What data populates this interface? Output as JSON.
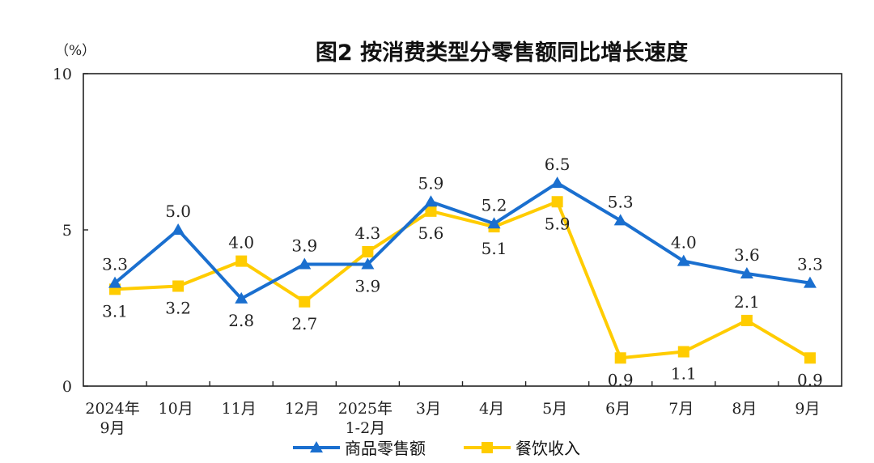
{
  "chart_data": {
    "type": "line",
    "title": "图2  按消费类型分零售额同比增长速度",
    "y_unit": "（%）",
    "ylim": [
      0,
      10
    ],
    "yticks": [
      "0",
      "5",
      "10"
    ],
    "categories": [
      [
        "2024年",
        "9月"
      ],
      [
        "10月"
      ],
      [
        "11月"
      ],
      [
        "12月"
      ],
      [
        "2025年",
        "1-2月"
      ],
      [
        "3月"
      ],
      [
        "4月"
      ],
      [
        "5月"
      ],
      [
        "6月"
      ],
      [
        "7月"
      ],
      [
        "8月"
      ],
      [
        "9月"
      ]
    ],
    "series": [
      {
        "name": "商品零售额",
        "color": "#1a6fcf",
        "marker": "triangle",
        "values": [
          3.3,
          5.0,
          2.8,
          3.9,
          3.9,
          5.9,
          5.2,
          6.5,
          5.3,
          4.0,
          3.6,
          3.3
        ],
        "labels": [
          "3.3",
          "5.0",
          "2.8",
          "3.9",
          "3.9",
          "5.9",
          "5.2",
          "6.5",
          "5.3",
          "4.0",
          "3.6",
          "3.3"
        ]
      },
      {
        "name": "餐饮收入",
        "color": "#ffcc00",
        "marker": "square",
        "values": [
          3.1,
          3.2,
          4.0,
          2.7,
          4.3,
          5.6,
          5.1,
          5.9,
          0.9,
          1.1,
          2.1,
          0.9
        ],
        "labels": [
          "3.1",
          "3.2",
          "4.0",
          "2.7",
          "4.3",
          "5.6",
          "5.1",
          "5.9",
          "0.9",
          "1.1",
          "2.1",
          "0.9"
        ]
      }
    ],
    "legend_position": "bottom-center",
    "grid": false
  }
}
